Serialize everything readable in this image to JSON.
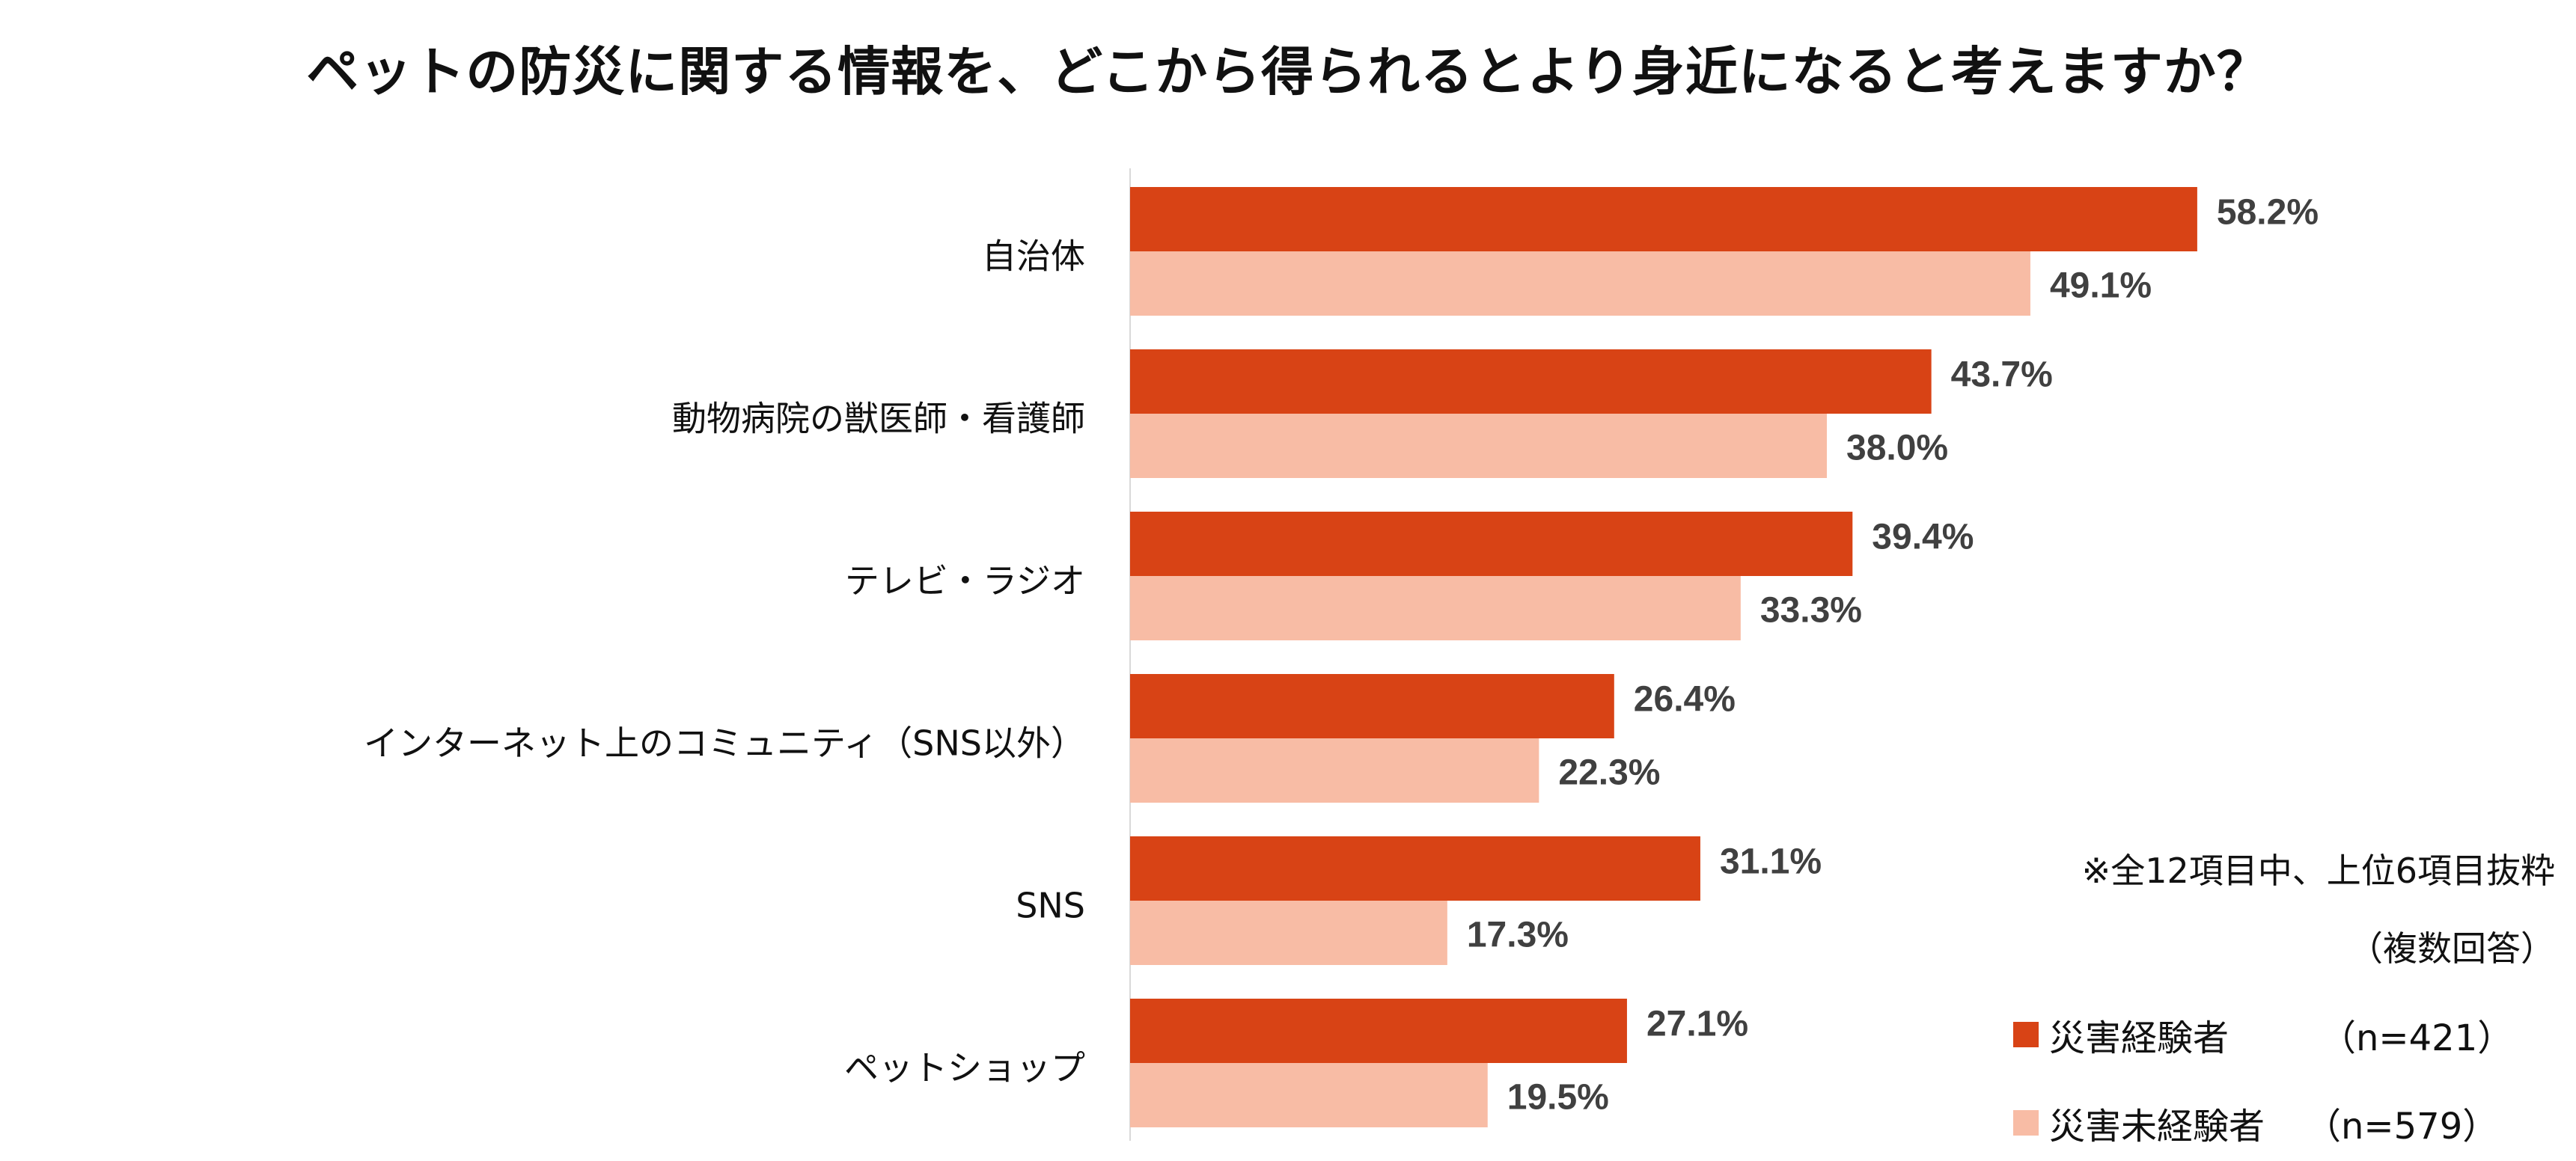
{
  "chart_data": {
    "type": "bar",
    "orientation": "horizontal",
    "title": "ペットの防災に関する情報を、どこから得られるとより身近になると考えますか？",
    "categories": [
      "自治体",
      "動物病院の獣医師・看護師",
      "テレビ・ラジオ",
      "インターネット上のコミュニティ（SNS以外）",
      "SNS",
      "ペットショップ"
    ],
    "series": [
      {
        "name": "災害経験者",
        "n_label": "（n=421）",
        "color": "#D84315",
        "values": [
          58.2,
          43.7,
          39.4,
          26.4,
          31.1,
          27.1
        ]
      },
      {
        "name": "災害未経験者",
        "n_label": "（n=579）",
        "color": "#F8BCA5",
        "values": [
          49.1,
          38.0,
          33.3,
          22.3,
          17.3,
          19.5
        ]
      }
    ],
    "value_suffix": "%",
    "xlim": [
      0,
      60
    ],
    "grid": false,
    "legend_position": "bottom-right",
    "notes": [
      "※全12項目中、上位6項目抜粋",
      "（複数回答）"
    ]
  }
}
